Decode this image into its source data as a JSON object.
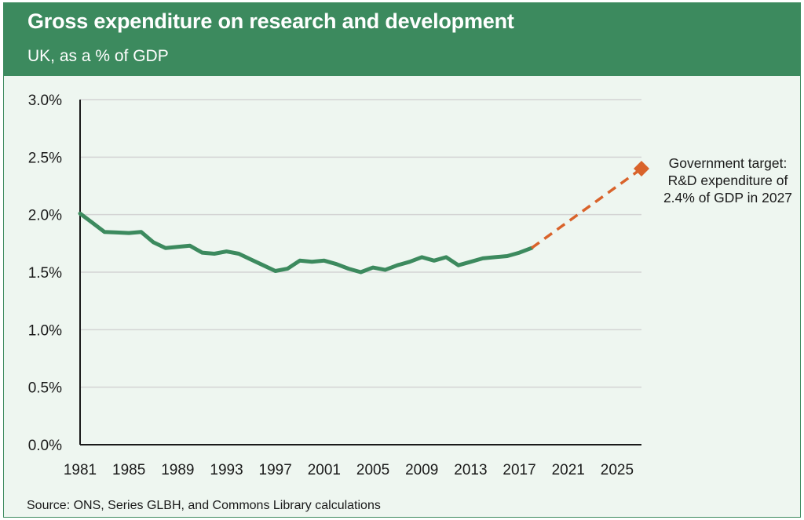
{
  "header": {
    "title": "Gross expenditure on research and development",
    "subtitle": "UK, as a % of GDP"
  },
  "source": "Source: ONS, Series GLBH, and Commons Library calculations",
  "colors": {
    "header": "#3c8a5e",
    "background": "#eef6f0",
    "series_line": "#3c8a5e",
    "target": "#d9632b",
    "gridline": "#d4d4d4"
  },
  "chart_data": {
    "type": "line",
    "title": "Gross expenditure on research and development",
    "subtitle": "UK, as a % of GDP",
    "xlim": [
      1981,
      2027
    ],
    "ylim": [
      0,
      3.0
    ],
    "y_ticks": [
      "0.0%",
      "0.5%",
      "1.0%",
      "1.5%",
      "2.0%",
      "2.5%",
      "3.0%"
    ],
    "y_tick_values": [
      0,
      0.5,
      1.0,
      1.5,
      2.0,
      2.5,
      3.0
    ],
    "x_ticks": [
      "1981",
      "1985",
      "1989",
      "1993",
      "1997",
      "2001",
      "2005",
      "2009",
      "2013",
      "2017",
      "2021",
      "2025"
    ],
    "grid": "horizontal",
    "series": [
      {
        "x": [
          1981,
          1982,
          1983,
          1984,
          1985,
          1986,
          1987,
          1988,
          1989,
          1990,
          1991,
          1992,
          1993,
          1994,
          1995,
          1996,
          1997,
          1998,
          1999,
          2000,
          2001,
          2002,
          2003,
          2004,
          2005,
          2006,
          2007,
          2008,
          2009,
          2010,
          2011,
          2012,
          2013,
          2014,
          2015,
          2016,
          2017,
          2018
        ],
        "values": [
          2.01,
          1.93,
          1.85,
          1.845,
          1.84,
          1.85,
          1.76,
          1.71,
          1.72,
          1.73,
          1.67,
          1.66,
          1.68,
          1.66,
          1.61,
          1.56,
          1.51,
          1.53,
          1.6,
          1.59,
          1.6,
          1.57,
          1.53,
          1.5,
          1.54,
          1.52,
          1.56,
          1.59,
          1.63,
          1.6,
          1.63,
          1.56,
          1.59,
          1.62,
          1.63,
          1.64,
          1.67,
          1.71
        ]
      },
      {
        "style": "dashed",
        "x": [
          2018,
          2027
        ],
        "values": [
          1.71,
          2.4
        ]
      }
    ],
    "target_point": {
      "x": 2027,
      "value": 2.4
    },
    "annotation": [
      "Government target:",
      "R&D expenditure of",
      "2.4% of GDP in 2027"
    ]
  }
}
